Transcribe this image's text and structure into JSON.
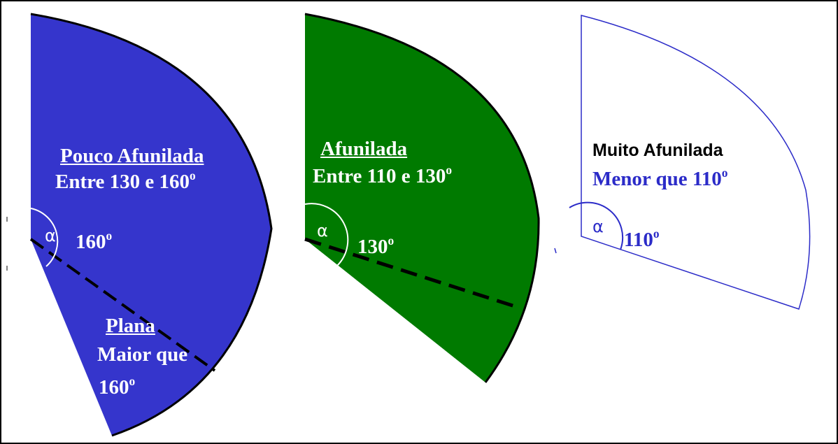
{
  "colors": {
    "blue_fill": "#3535cc",
    "green_fill": "#007a00",
    "white_text": "#ffffff",
    "outline_blue": "#2b2bc8",
    "black": "#000000"
  },
  "sectors": [
    {
      "id": "pouco",
      "title": "Pouco Afunilada",
      "range": "Entre 130 e  160",
      "range_degree_mark": "o",
      "alpha": "α",
      "angle_value": "160",
      "angle_degree_mark": "o",
      "sub_title": "Plana",
      "sub_line1": "Maior que",
      "sub_value": "160",
      "sub_degree_mark": "o"
    },
    {
      "id": "afunilada",
      "title": "Afunilada",
      "range": "Entre 110 e  130",
      "range_degree_mark": "o",
      "alpha": "α",
      "angle_value": "130",
      "angle_degree_mark": "o"
    },
    {
      "id": "muito",
      "title": "Muito Afunilada",
      "range": "Menor que 110",
      "range_degree_mark": "o",
      "alpha": "α",
      "angle_value": "110",
      "angle_degree_mark": "o"
    }
  ]
}
